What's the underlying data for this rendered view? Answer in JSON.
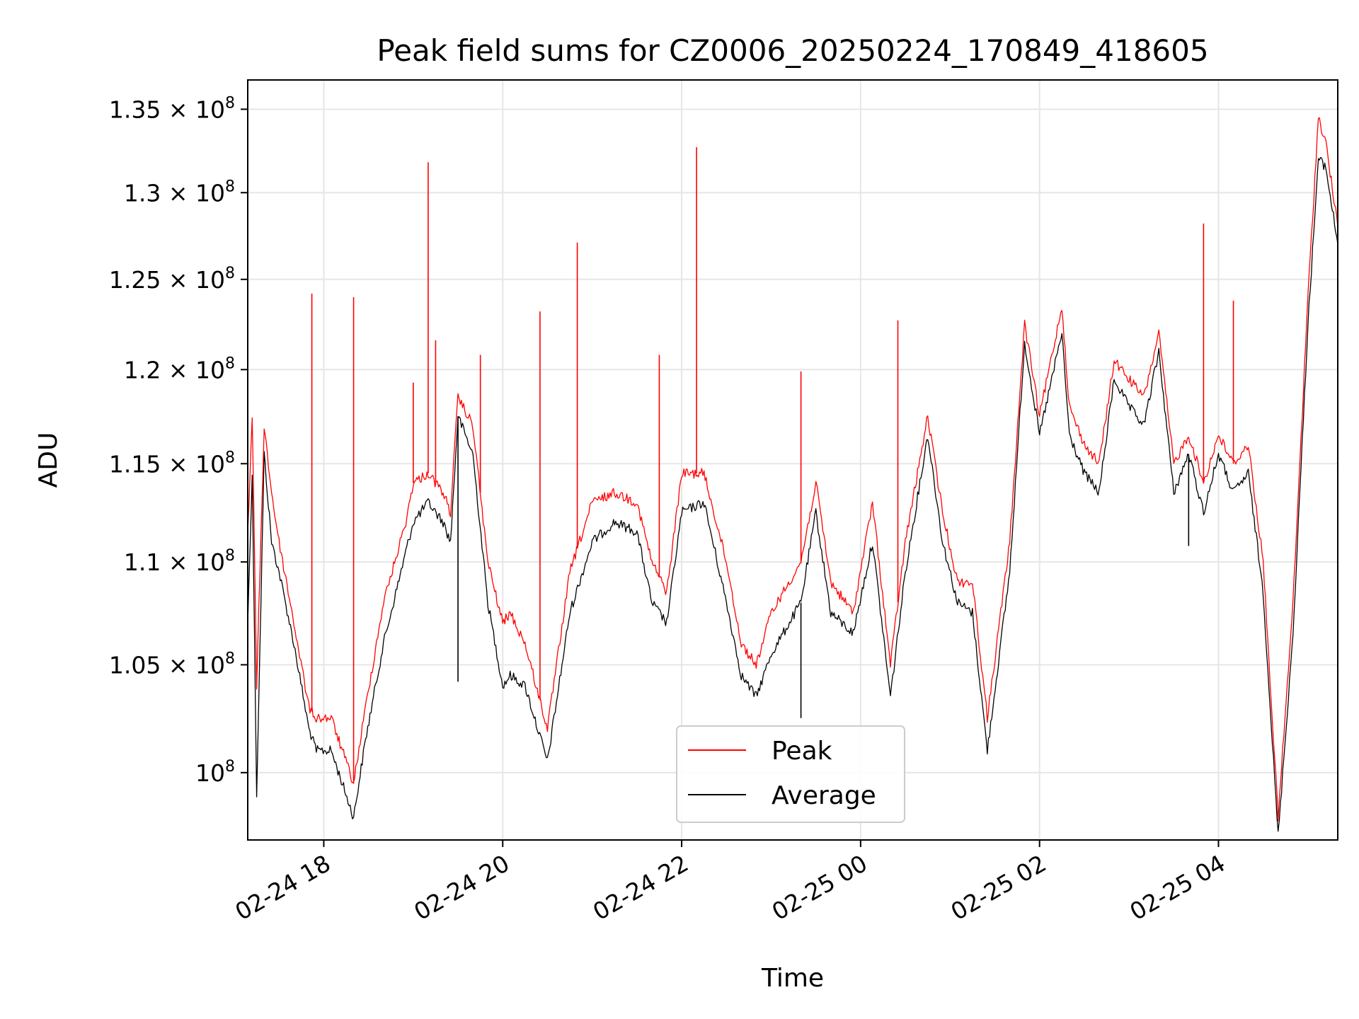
{
  "chart_data": {
    "type": "line",
    "title": "Peak field sums for CZ0006_20250224_170849_418605",
    "xlabel": "Time",
    "ylabel": "ADU",
    "y_scale": "log",
    "xlim": [
      "2025-02-24 17:09",
      "2025-02-25 05:20"
    ],
    "ylim": [
      97000000,
      136800000
    ],
    "grid": true,
    "legend_position": "bottom-center",
    "x_ticks": [
      {
        "value": "2025-02-24 18:00",
        "label": "02-24 18"
      },
      {
        "value": "2025-02-24 20:00",
        "label": "02-24 20"
      },
      {
        "value": "2025-02-24 22:00",
        "label": "02-24 22"
      },
      {
        "value": "2025-02-25 00:00",
        "label": "02-25 00"
      },
      {
        "value": "2025-02-25 02:00",
        "label": "02-25 02"
      },
      {
        "value": "2025-02-25 04:00",
        "label": "02-25 04"
      }
    ],
    "y_ticks": [
      {
        "value": 100000000,
        "mantissa": "",
        "exp": "8"
      },
      {
        "value": 105000000,
        "mantissa": "1.05",
        "exp": "8"
      },
      {
        "value": 110000000,
        "mantissa": "1.1",
        "exp": "8"
      },
      {
        "value": 115000000,
        "mantissa": "1.15",
        "exp": "8"
      },
      {
        "value": 120000000,
        "mantissa": "1.2",
        "exp": "8"
      },
      {
        "value": 125000000,
        "mantissa": "1.25",
        "exp": "8"
      },
      {
        "value": 130000000,
        "mantissa": "1.3",
        "exp": "8"
      },
      {
        "value": 135000000,
        "mantissa": "1.35",
        "exp": "8"
      }
    ],
    "x": [
      "2025-02-24 17:09",
      "2025-02-24 17:12",
      "2025-02-24 17:15",
      "2025-02-24 17:20",
      "2025-02-24 17:25",
      "2025-02-24 17:30",
      "2025-02-24 17:40",
      "2025-02-24 17:50",
      "2025-02-24 17:55",
      "2025-02-24 18:05",
      "2025-02-24 18:20",
      "2025-02-24 18:28",
      "2025-02-24 18:40",
      "2025-02-24 18:55",
      "2025-02-24 19:00",
      "2025-02-24 19:10",
      "2025-02-24 19:20",
      "2025-02-24 19:25",
      "2025-02-24 19:30",
      "2025-02-24 19:40",
      "2025-02-24 19:50",
      "2025-02-24 20:00",
      "2025-02-24 20:05",
      "2025-02-24 20:15",
      "2025-02-24 20:30",
      "2025-02-24 20:45",
      "2025-02-24 21:00",
      "2025-02-24 21:15",
      "2025-02-24 21:30",
      "2025-02-24 21:40",
      "2025-02-24 21:50",
      "2025-02-24 22:00",
      "2025-02-24 22:15",
      "2025-02-24 22:30",
      "2025-02-24 22:40",
      "2025-02-24 22:50",
      "2025-02-24 23:00",
      "2025-02-24 23:20",
      "2025-02-24 23:30",
      "2025-02-24 23:40",
      "2025-02-24 23:55",
      "2025-02-25 00:08",
      "2025-02-25 00:20",
      "2025-02-25 00:30",
      "2025-02-25 00:45",
      "2025-02-25 00:55",
      "2025-02-25 01:05",
      "2025-02-25 01:15",
      "2025-02-25 01:25",
      "2025-02-25 01:40",
      "2025-02-25 01:50",
      "2025-02-25 02:00",
      "2025-02-25 02:15",
      "2025-02-25 02:20",
      "2025-02-25 02:30",
      "2025-02-25 02:40",
      "2025-02-25 02:50",
      "2025-02-25 03:00",
      "2025-02-25 03:10",
      "2025-02-25 03:20",
      "2025-02-25 03:30",
      "2025-02-25 03:40",
      "2025-02-25 03:50",
      "2025-02-25 04:00",
      "2025-02-25 04:10",
      "2025-02-25 04:20",
      "2025-02-25 04:30",
      "2025-02-25 04:40",
      "2025-02-25 04:50",
      "2025-02-25 05:00",
      "2025-02-25 05:07",
      "2025-02-25 05:12",
      "2025-02-25 05:20"
    ],
    "series": [
      {
        "name": "Peak",
        "color": "#ff0000",
        "values": [
          111500000,
          117500000,
          104000000,
          117000000,
          113500000,
          111000000,
          107000000,
          103000000,
          102500000,
          102500000,
          99500000,
          103000000,
          108000000,
          112000000,
          114000000,
          114500000,
          113500000,
          112500000,
          118500000,
          117000000,
          110000000,
          107000000,
          107500000,
          106000000,
          102000000,
          109500000,
          113000000,
          113500000,
          113000000,
          110000000,
          108500000,
          114500000,
          114500000,
          110000000,
          106000000,
          105000000,
          107500000,
          110000000,
          114000000,
          109000000,
          107500000,
          113000000,
          105000000,
          111000000,
          117500000,
          112500000,
          109000000,
          109000000,
          102500000,
          111000000,
          122500000,
          117500000,
          123500000,
          118000000,
          116000000,
          115000000,
          120500000,
          119500000,
          118500000,
          122000000,
          115000000,
          116500000,
          114000000,
          116500000,
          115000000,
          116000000,
          110000000,
          98000000,
          108000000,
          124000000,
          134500000,
          133000000,
          128000000
        ]
      },
      {
        "name": "Average",
        "color": "#000000",
        "values": [
          107000000,
          114500000,
          99000000,
          115500000,
          111000000,
          109500000,
          106000000,
          102000000,
          101000000,
          101000000,
          98000000,
          101500000,
          106000000,
          110500000,
          112000000,
          113000000,
          112000000,
          111000000,
          117500000,
          115500000,
          108000000,
          104000000,
          104500000,
          104000000,
          100500000,
          107500000,
          111000000,
          112000000,
          111500000,
          108000000,
          107000000,
          112500000,
          113000000,
          108000000,
          104500000,
          103500000,
          105500000,
          108000000,
          112500000,
          107500000,
          106500000,
          111000000,
          103500000,
          109500000,
          116500000,
          111000000,
          108000000,
          107500000,
          101000000,
          109500000,
          121500000,
          116500000,
          122000000,
          116500000,
          114500000,
          113500000,
          119500000,
          118000000,
          117000000,
          121000000,
          113500000,
          115500000,
          112500000,
          115500000,
          113500000,
          114500000,
          108500000,
          97200000,
          106500000,
          122500000,
          132000000,
          131500000,
          127000000
        ]
      }
    ],
    "spikes": [
      {
        "x": "2025-02-24 17:52",
        "peak": 124200000
      },
      {
        "x": "2025-02-24 18:20",
        "peak": 124000000
      },
      {
        "x": "2025-02-24 19:00",
        "peak": 119300000
      },
      {
        "x": "2025-02-24 19:10",
        "peak": 131800000
      },
      {
        "x": "2025-02-24 19:15",
        "peak": 121600000
      },
      {
        "x": "2025-02-24 19:45",
        "peak": 120800000
      },
      {
        "x": "2025-02-24 20:25",
        "peak": 123200000
      },
      {
        "x": "2025-02-24 20:50",
        "peak": 127100000
      },
      {
        "x": "2025-02-24 21:45",
        "peak": 120800000
      },
      {
        "x": "2025-02-24 22:10",
        "peak": 132700000
      },
      {
        "x": "2025-02-24 23:20",
        "peak": 119900000
      },
      {
        "x": "2025-02-25 00:25",
        "peak": 122700000
      },
      {
        "x": "2025-02-25 03:50",
        "peak": 128200000
      },
      {
        "x": "2025-02-25 04:10",
        "peak": 123800000
      }
    ],
    "dips": [
      {
        "x": "2025-02-24 19:30",
        "avg": 104200000
      },
      {
        "x": "2025-02-24 23:20",
        "avg": 102500000
      },
      {
        "x": "2025-02-25 03:40",
        "avg": 110800000
      }
    ]
  }
}
